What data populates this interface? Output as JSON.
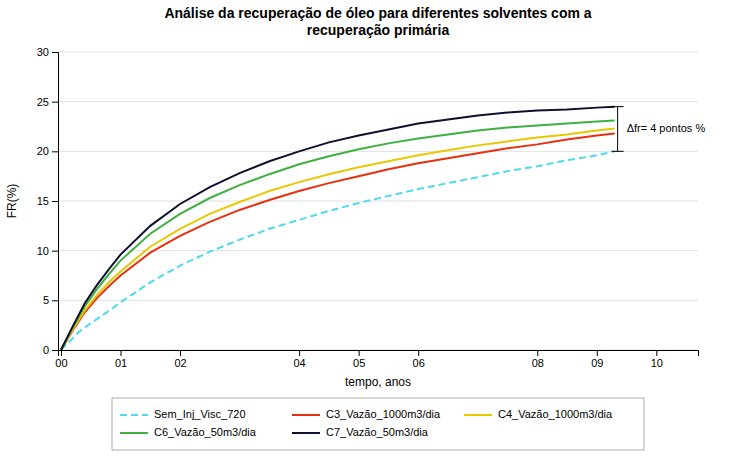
{
  "chart_data": {
    "type": "line",
    "title": "Análise da recuperação de óleo para diferentes solventes com a\nrecuperação primária",
    "x_label": "tempo, anos",
    "y_label": "FR(%)",
    "xlim": [
      -0.05,
      10.7
    ],
    "ylim": [
      0,
      30
    ],
    "xticks": [
      {
        "value": 0,
        "label": "00"
      },
      {
        "value": 1,
        "label": "01"
      },
      {
        "value": 2,
        "label": "02"
      },
      {
        "value": 4,
        "label": "04"
      },
      {
        "value": 5,
        "label": "05"
      },
      {
        "value": 6,
        "label": "06"
      },
      {
        "value": 8,
        "label": "08"
      },
      {
        "value": 9,
        "label": "09"
      },
      {
        "value": 10,
        "label": "10"
      }
    ],
    "yticks": [
      0,
      5,
      10,
      15,
      20,
      25,
      30
    ],
    "grid": true,
    "legend": "bottom",
    "series": [
      {
        "name": "Sem_Inj_Visc_720",
        "color": "#4dd9f0",
        "line_style": "dashed",
        "x": [
          0.0,
          0.3,
          0.5,
          0.7,
          1.0,
          1.5,
          2.0,
          2.5,
          3.0,
          3.5,
          4.0,
          4.5,
          5.0,
          5.5,
          6.0,
          6.5,
          7.0,
          7.5,
          8.0,
          8.5,
          9.0,
          9.3
        ],
        "values": [
          0.0,
          1.8,
          2.7,
          3.5,
          4.8,
          6.8,
          8.5,
          9.9,
          11.1,
          12.2,
          13.1,
          14.0,
          14.8,
          15.5,
          16.2,
          16.8,
          17.4,
          18.0,
          18.5,
          19.1,
          19.6,
          20.0
        ]
      },
      {
        "name": "C3_Vazão_1000m3/dia",
        "color": "#e83010",
        "line_style": "solid",
        "x": [
          0.0,
          0.2,
          0.4,
          0.6,
          0.8,
          1.0,
          1.5,
          2.0,
          2.5,
          3.0,
          3.5,
          4.0,
          4.5,
          5.0,
          5.5,
          6.0,
          6.5,
          7.0,
          7.5,
          8.0,
          8.5,
          9.0,
          9.3
        ],
        "values": [
          0.0,
          2.0,
          3.8,
          5.2,
          6.4,
          7.5,
          9.8,
          11.5,
          12.9,
          14.1,
          15.1,
          16.0,
          16.8,
          17.5,
          18.2,
          18.8,
          19.3,
          19.8,
          20.3,
          20.7,
          21.2,
          21.6,
          21.8
        ]
      },
      {
        "name": "C4_Vazão_1000m3/dia",
        "color": "#e8c800",
        "line_style": "solid",
        "x": [
          0.0,
          0.2,
          0.4,
          0.6,
          0.8,
          1.0,
          1.5,
          2.0,
          2.5,
          3.0,
          3.5,
          4.0,
          4.5,
          5.0,
          5.5,
          6.0,
          6.5,
          7.0,
          7.5,
          8.0,
          8.5,
          9.0,
          9.3
        ],
        "values": [
          0.0,
          2.1,
          4.0,
          5.5,
          6.8,
          7.9,
          10.4,
          12.2,
          13.7,
          14.9,
          16.0,
          16.9,
          17.7,
          18.4,
          19.0,
          19.6,
          20.1,
          20.6,
          21.0,
          21.4,
          21.7,
          22.1,
          22.3
        ]
      },
      {
        "name": "C6_Vazão_50m3/dia",
        "color": "#3db040",
        "line_style": "solid",
        "x": [
          0.0,
          0.2,
          0.4,
          0.6,
          0.8,
          1.0,
          1.5,
          2.0,
          2.5,
          3.0,
          3.5,
          4.0,
          4.5,
          5.0,
          5.5,
          6.0,
          6.5,
          7.0,
          7.5,
          8.0,
          8.5,
          9.0,
          9.3
        ],
        "values": [
          0.0,
          2.3,
          4.4,
          6.1,
          7.6,
          9.0,
          11.7,
          13.7,
          15.3,
          16.6,
          17.7,
          18.7,
          19.5,
          20.2,
          20.8,
          21.3,
          21.7,
          22.1,
          22.4,
          22.6,
          22.8,
          23.0,
          23.1
        ]
      },
      {
        "name": "C7_Vazão_50m3/dia",
        "color": "#101030",
        "line_style": "solid",
        "x": [
          0.0,
          0.2,
          0.4,
          0.6,
          0.8,
          1.0,
          1.5,
          2.0,
          2.5,
          3.0,
          3.5,
          4.0,
          4.5,
          5.0,
          5.5,
          6.0,
          6.5,
          7.0,
          7.5,
          8.0,
          8.5,
          9.0,
          9.3
        ],
        "values": [
          0.0,
          2.4,
          4.7,
          6.5,
          8.1,
          9.6,
          12.5,
          14.7,
          16.4,
          17.8,
          19.0,
          20.0,
          20.9,
          21.6,
          22.2,
          22.8,
          23.2,
          23.6,
          23.9,
          24.1,
          24.2,
          24.4,
          24.5
        ]
      }
    ],
    "annotations": [
      {
        "text": "Δfr= 4 pontos %",
        "x": 9.35,
        "y_low": 20.0,
        "y_high": 24.5
      }
    ]
  }
}
